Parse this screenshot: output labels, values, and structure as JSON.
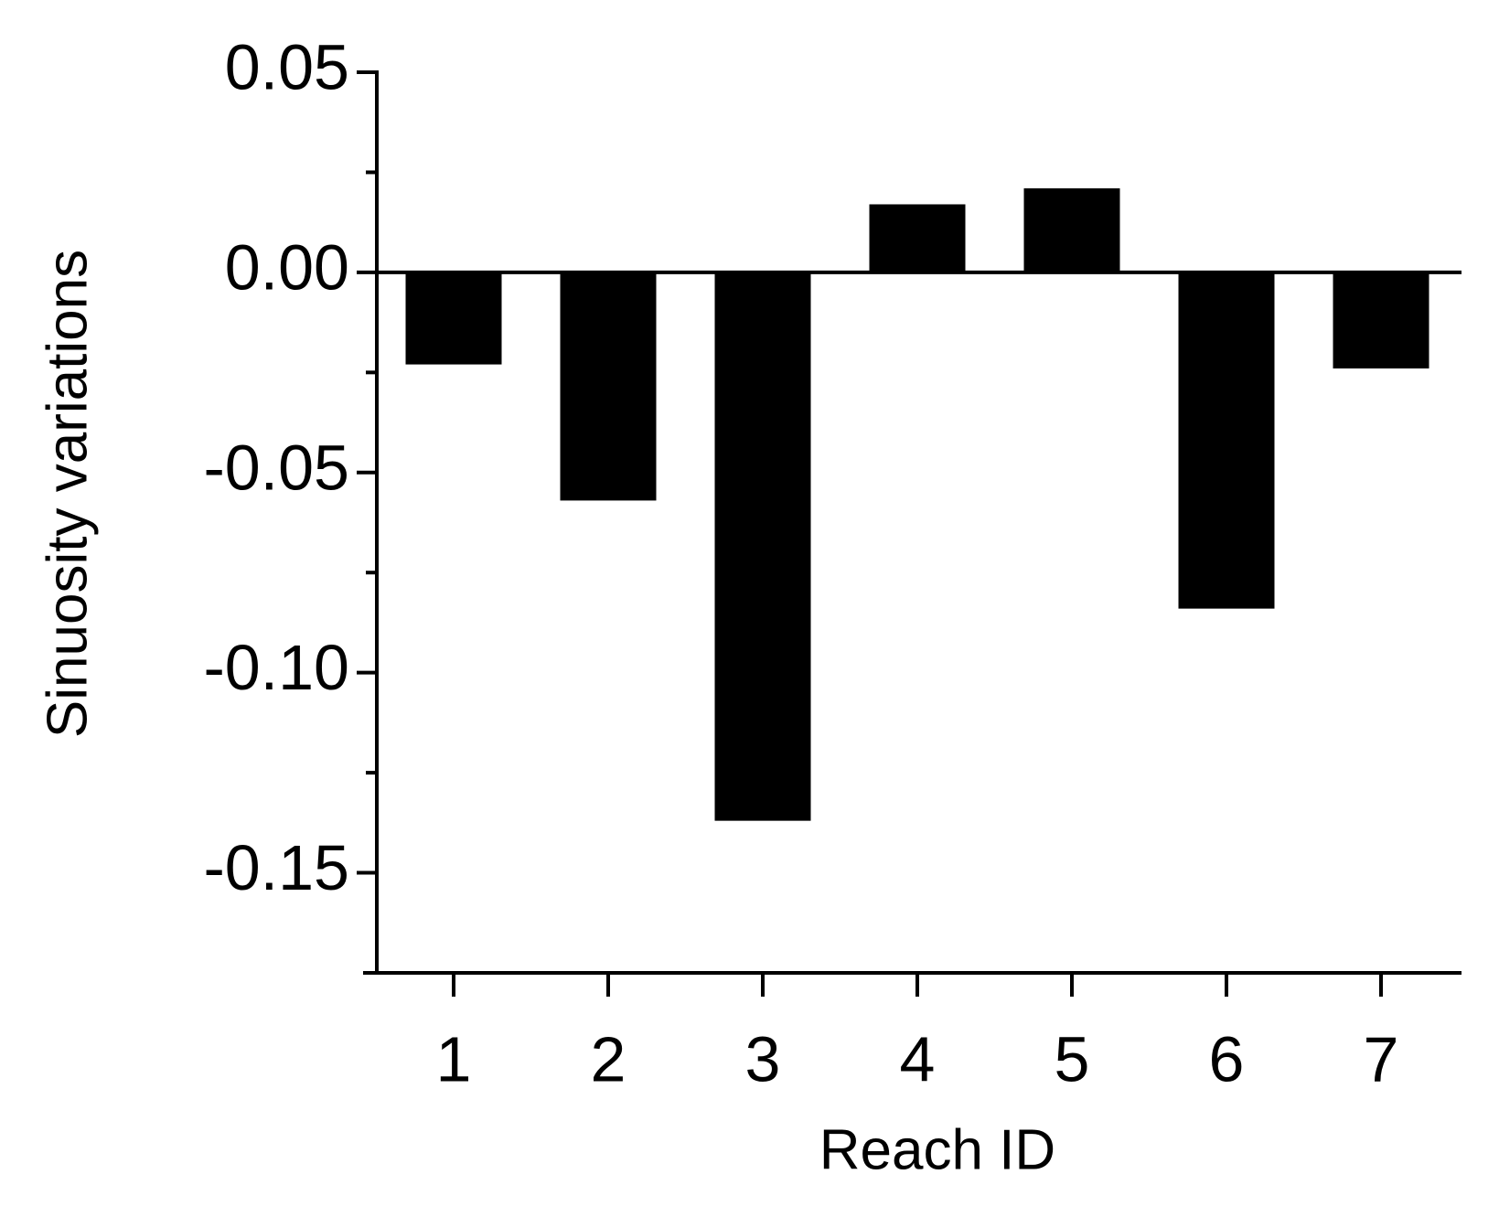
{
  "chart_data": {
    "type": "bar",
    "x_label": "Reach ID",
    "y_label": "Sinuosity variations",
    "categories": [
      "1",
      "2",
      "3",
      "4",
      "5",
      "6",
      "7"
    ],
    "values": [
      -0.023,
      -0.057,
      -0.137,
      0.017,
      0.021,
      -0.084,
      -0.024
    ],
    "color": "#000000",
    "ylim": [
      -0.175,
      0.05
    ],
    "yticks": [
      0.05,
      {
        "value": 0,
        "label": "0.00"
      },
      -0.05,
      {
        "value": -0.1,
        "label": "-0.10"
      },
      -0.15
    ],
    "minor_yticks": [
      0.025,
      -0.025,
      -0.075,
      -0.125
    ],
    "grid": false
  }
}
